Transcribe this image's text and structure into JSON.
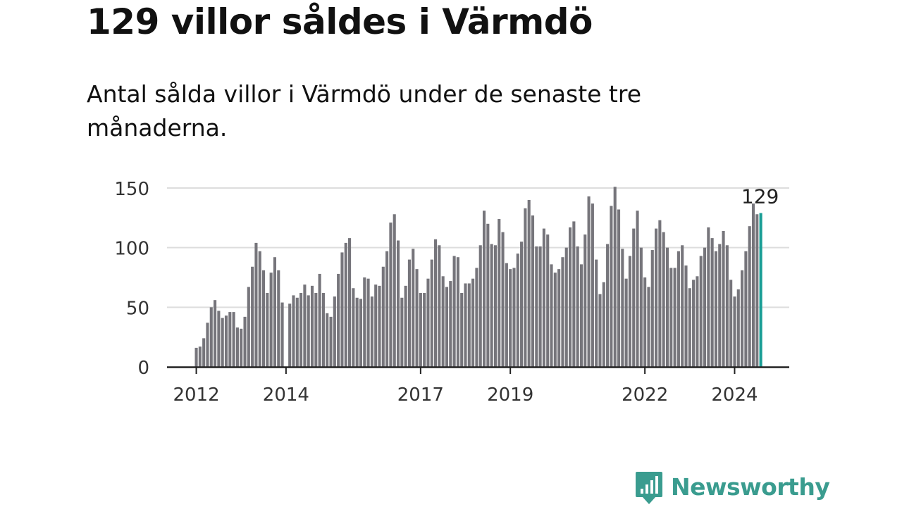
{
  "header": {
    "title": "129 villor såldes i Värmdö",
    "subtitle": "Antal sålda villor i Värmdö under de senaste tre månaderna."
  },
  "brand": {
    "name": "Newsworthy",
    "color": "#3a9c8f"
  },
  "colors": {
    "bar": "#76757b",
    "highlight": "#1a9e96",
    "grid": "#dddddd",
    "axis": "#222222"
  },
  "chart_data": {
    "type": "bar",
    "title": "129 villor såldes i Värmdö",
    "subtitle": "Antal sålda villor i Värmdö under de senaste tre månaderna.",
    "xlabel": "",
    "ylabel": "",
    "ylim": [
      0,
      150
    ],
    "yticks": [
      0,
      50,
      100,
      150
    ],
    "xticks": [
      "2012",
      "2014",
      "2017",
      "2019",
      "2022",
      "2024"
    ],
    "xtick_index": [
      0,
      24,
      60,
      84,
      120,
      144
    ],
    "grid": true,
    "highlight_label": "129",
    "series": [
      {
        "name": "Antal sålda villor",
        "values": [
          16,
          17,
          24,
          37,
          50,
          56,
          47,
          41,
          43,
          46,
          46,
          33,
          32,
          42,
          67,
          84,
          104,
          97,
          81,
          62,
          79,
          92,
          81,
          54,
          0,
          53,
          60,
          58,
          62,
          69,
          60,
          68,
          62,
          78,
          62,
          45,
          42,
          59,
          78,
          96,
          104,
          108,
          66,
          58,
          57,
          75,
          74,
          59,
          69,
          68,
          84,
          97,
          121,
          128,
          106,
          58,
          68,
          90,
          99,
          82,
          62,
          62,
          74,
          90,
          107,
          102,
          76,
          67,
          72,
          93,
          92,
          62,
          70,
          70,
          74,
          83,
          102,
          131,
          120,
          103,
          102,
          124,
          113,
          87,
          82,
          83,
          95,
          105,
          133,
          140,
          127,
          101,
          101,
          116,
          111,
          86,
          79,
          82,
          92,
          100,
          117,
          122,
          101,
          86,
          111,
          143,
          137,
          90,
          61,
          71,
          103,
          135,
          151,
          132,
          99,
          74,
          93,
          116,
          131,
          100,
          75,
          67,
          98,
          116,
          123,
          113,
          100,
          83,
          83,
          97,
          102,
          85,
          66,
          73,
          76,
          93,
          100,
          117,
          108,
          97,
          103,
          114,
          102,
          73,
          59,
          65,
          81,
          97,
          118,
          137,
          128,
          129
        ]
      }
    ]
  }
}
